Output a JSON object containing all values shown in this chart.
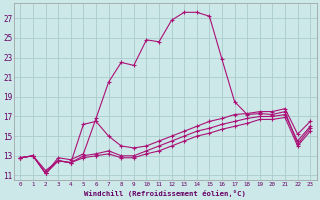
{
  "xlabel": "Windchill (Refroidissement éolien,°C)",
  "bg_color": "#cde8e8",
  "grid_color": "#aacccc",
  "line_color": "#aa1177",
  "xlim": [
    -0.5,
    23.5
  ],
  "ylim": [
    10.5,
    28.5
  ],
  "ytick_vals": [
    11,
    13,
    15,
    17,
    19,
    21,
    23,
    25,
    27
  ],
  "ytick_labels": [
    "11",
    "13",
    "15",
    "17",
    "19",
    "21",
    "23",
    "25",
    "27"
  ],
  "xtick_vals": [
    0,
    1,
    2,
    3,
    4,
    5,
    6,
    7,
    8,
    9,
    10,
    11,
    12,
    13,
    14,
    15,
    16,
    17,
    18,
    19,
    20,
    21,
    22,
    23
  ],
  "xtick_labels": [
    "0",
    "1",
    "2",
    "3",
    "4",
    "5",
    "6",
    "7",
    "8",
    "9",
    "10",
    "11",
    "12",
    "13",
    "14",
    "15",
    "16",
    "17",
    "18",
    "19",
    "20",
    "21",
    "22",
    "23"
  ],
  "series": [
    {
      "x": [
        0,
        1,
        2,
        3,
        4,
        5,
        6,
        7,
        8,
        9,
        10,
        11,
        12,
        13,
        14,
        15,
        16,
        17,
        18,
        19,
        20,
        21,
        22,
        23
      ],
      "y": [
        12.8,
        13.0,
        11.2,
        12.8,
        12.6,
        13.2,
        16.8,
        20.5,
        22.5,
        22.2,
        24.8,
        24.6,
        26.8,
        27.6,
        27.6,
        27.2,
        22.8,
        18.5,
        17.2,
        17.3,
        17.2,
        17.5,
        14.2,
        15.8
      ]
    },
    {
      "x": [
        0,
        1,
        2,
        3,
        4,
        5,
        6,
        7,
        8,
        9,
        10,
        11,
        12,
        13,
        14,
        15,
        16,
        17,
        18,
        19,
        20,
        21,
        22,
        23
      ],
      "y": [
        12.8,
        13.0,
        11.5,
        12.5,
        12.3,
        16.2,
        16.5,
        15.0,
        14.0,
        13.8,
        14.0,
        14.5,
        15.0,
        15.5,
        16.0,
        16.5,
        16.8,
        17.2,
        17.3,
        17.5,
        17.5,
        17.8,
        15.2,
        16.5
      ]
    },
    {
      "x": [
        0,
        1,
        2,
        3,
        4,
        5,
        6,
        7,
        8,
        9,
        10,
        11,
        12,
        13,
        14,
        15,
        16,
        17,
        18,
        19,
        20,
        21,
        22,
        23
      ],
      "y": [
        12.8,
        13.0,
        11.2,
        12.5,
        12.3,
        13.0,
        13.2,
        13.5,
        13.0,
        13.0,
        13.5,
        14.0,
        14.5,
        15.0,
        15.5,
        15.8,
        16.2,
        16.5,
        16.8,
        17.0,
        17.0,
        17.2,
        14.5,
        16.0
      ]
    },
    {
      "x": [
        0,
        1,
        2,
        3,
        4,
        5,
        6,
        7,
        8,
        9,
        10,
        11,
        12,
        13,
        14,
        15,
        16,
        17,
        18,
        19,
        20,
        21,
        22,
        23
      ],
      "y": [
        12.8,
        13.0,
        11.2,
        12.5,
        12.3,
        12.8,
        13.0,
        13.2,
        12.8,
        12.8,
        13.2,
        13.5,
        14.0,
        14.5,
        15.0,
        15.3,
        15.7,
        16.0,
        16.3,
        16.7,
        16.7,
        16.9,
        14.0,
        15.5
      ]
    }
  ]
}
